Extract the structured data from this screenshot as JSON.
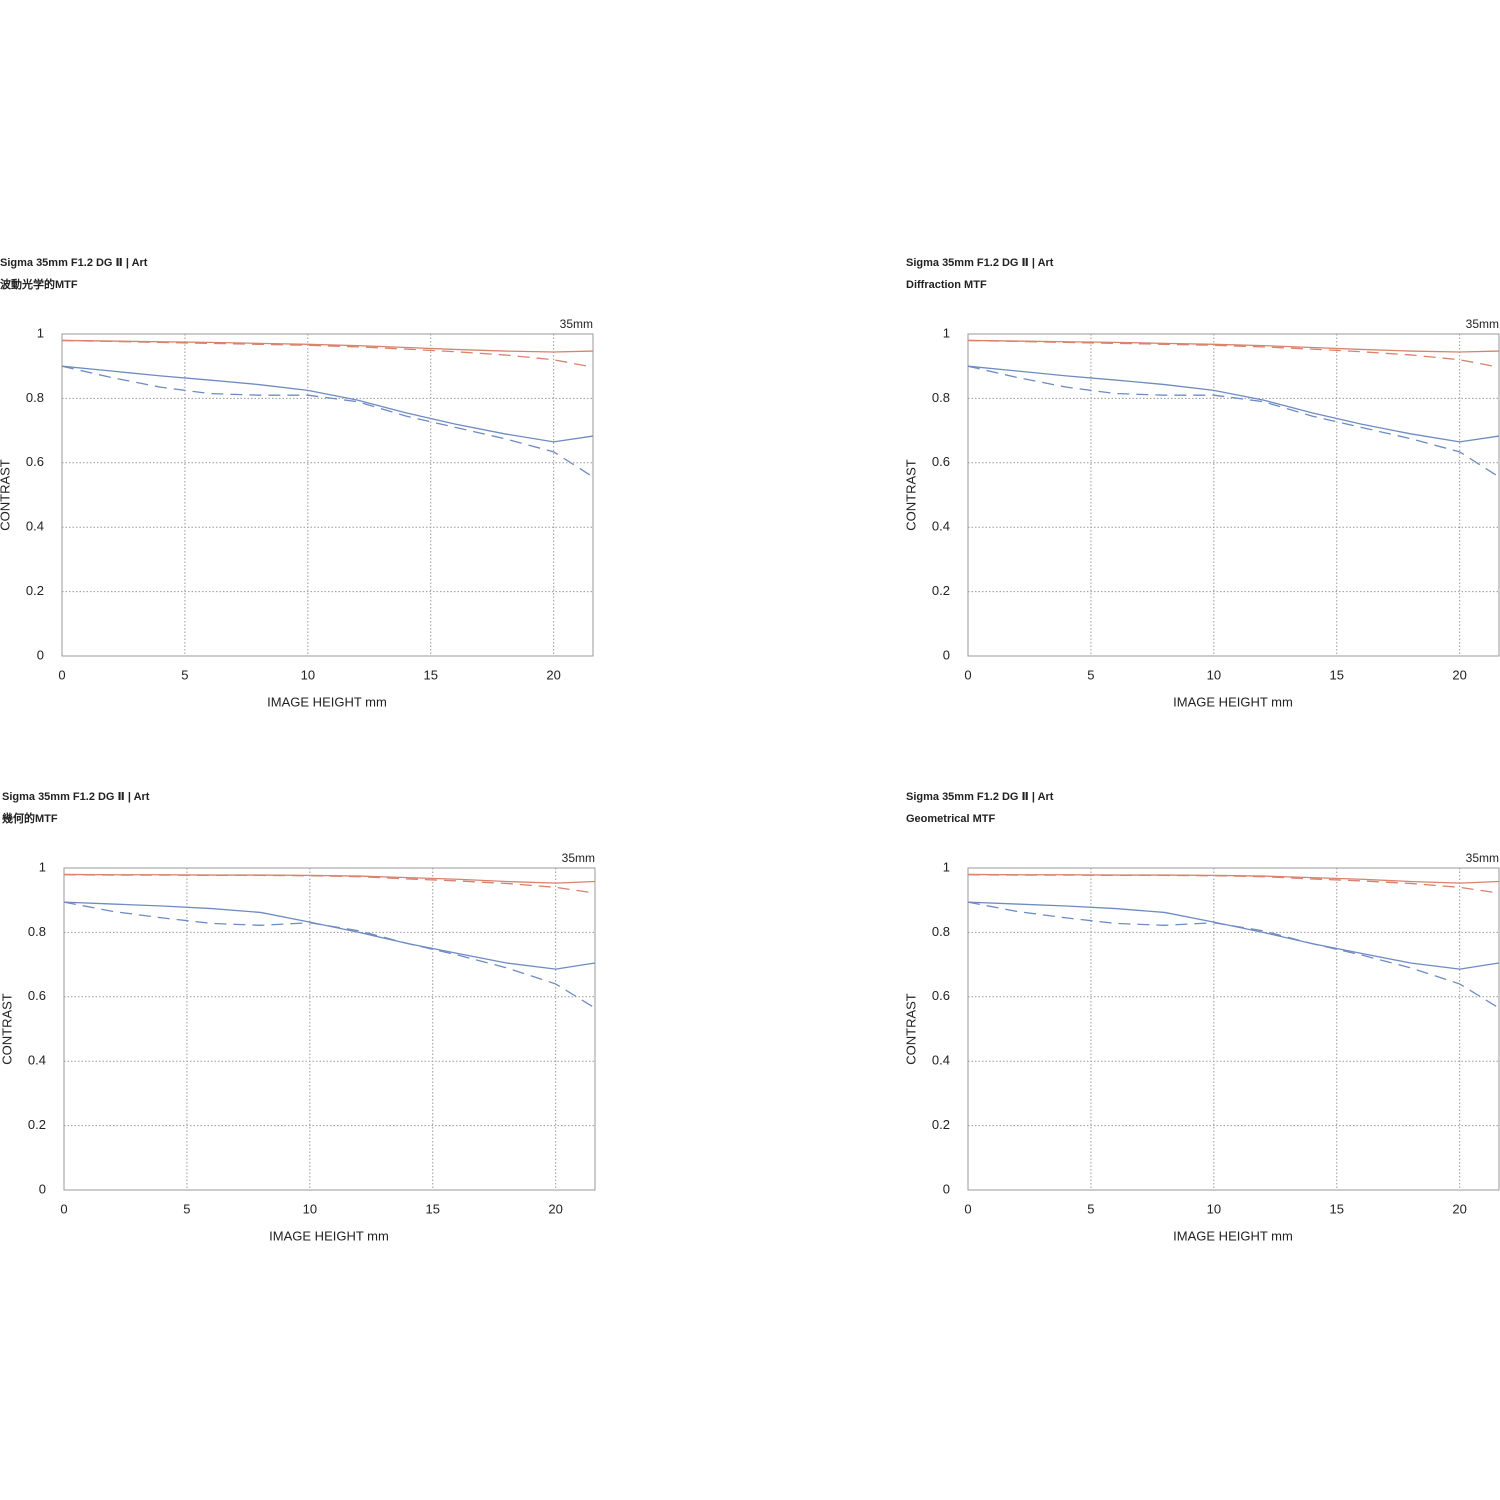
{
  "chart_data": [
    {
      "type": "line",
      "title": "Sigma 35mm F1.2 DG Ⅱ | Art",
      "subtitle": "波動光学的MTF",
      "annotation": "35mm",
      "xlabel": "IMAGE HEIGHT  mm",
      "ylabel": "CONTRAST",
      "x": [
        0,
        2,
        4,
        6,
        8,
        10,
        12,
        14,
        16,
        18,
        20,
        21.6
      ],
      "series": [
        {
          "color": "#d9826e",
          "dash": false,
          "values": [
            0.98,
            0.978,
            0.976,
            0.974,
            0.971,
            0.968,
            0.964,
            0.958,
            0.952,
            0.947,
            0.944,
            0.947
          ]
        },
        {
          "color": "#d9826e",
          "dash": true,
          "values": [
            0.98,
            0.977,
            0.974,
            0.971,
            0.968,
            0.965,
            0.96,
            0.953,
            0.945,
            0.935,
            0.92,
            0.897
          ]
        },
        {
          "color": "#6e8bc2",
          "dash": false,
          "values": [
            0.9,
            0.885,
            0.87,
            0.857,
            0.843,
            0.825,
            0.795,
            0.755,
            0.72,
            0.69,
            0.665,
            0.683
          ]
        },
        {
          "color": "#6e8bc2",
          "dash": true,
          "values": [
            0.9,
            0.865,
            0.835,
            0.815,
            0.81,
            0.81,
            0.79,
            0.745,
            0.71,
            0.675,
            0.634,
            0.556
          ]
        }
      ],
      "xlim": [
        0,
        21.6
      ],
      "ylim": [
        0,
        1
      ],
      "xticks": [
        0,
        5,
        10,
        15,
        20
      ],
      "yticks": [
        0,
        0.2,
        0.4,
        0.6,
        0.8,
        1
      ],
      "grid": true
    },
    {
      "type": "line",
      "title": "Sigma 35mm F1.2 DG Ⅱ | Art",
      "subtitle": "Diffraction MTF",
      "annotation": "35mm",
      "xlabel": "IMAGE HEIGHT  mm",
      "ylabel": "CONTRAST",
      "x": [
        0,
        2,
        4,
        6,
        8,
        10,
        12,
        14,
        16,
        18,
        20,
        21.6
      ],
      "series": [
        {
          "color": "#d9826e",
          "dash": false,
          "values": [
            0.98,
            0.978,
            0.976,
            0.974,
            0.971,
            0.968,
            0.964,
            0.958,
            0.952,
            0.947,
            0.944,
            0.947
          ]
        },
        {
          "color": "#d9826e",
          "dash": true,
          "values": [
            0.98,
            0.977,
            0.974,
            0.971,
            0.968,
            0.965,
            0.96,
            0.953,
            0.945,
            0.935,
            0.92,
            0.897
          ]
        },
        {
          "color": "#6e8bc2",
          "dash": false,
          "values": [
            0.9,
            0.885,
            0.87,
            0.857,
            0.843,
            0.825,
            0.795,
            0.755,
            0.72,
            0.69,
            0.665,
            0.683
          ]
        },
        {
          "color": "#6e8bc2",
          "dash": true,
          "values": [
            0.9,
            0.865,
            0.835,
            0.815,
            0.81,
            0.81,
            0.79,
            0.745,
            0.71,
            0.675,
            0.634,
            0.556
          ]
        }
      ],
      "xlim": [
        0,
        21.6
      ],
      "ylim": [
        0,
        1
      ],
      "xticks": [
        0,
        5,
        10,
        15,
        20
      ],
      "yticks": [
        0,
        0.2,
        0.4,
        0.6,
        0.8,
        1
      ],
      "grid": true
    },
    {
      "type": "line",
      "title": "Sigma 35mm F1.2 DG Ⅱ | Art",
      "subtitle": "幾何的MTF",
      "annotation": "35mm",
      "xlabel": "IMAGE HEIGHT  mm",
      "ylabel": "CONTRAST",
      "x": [
        0,
        2,
        4,
        6,
        8,
        10,
        12,
        14,
        16,
        18,
        20,
        21.6
      ],
      "series": [
        {
          "color": "#d9826e",
          "dash": false,
          "values": [
            0.98,
            0.979,
            0.979,
            0.978,
            0.978,
            0.977,
            0.975,
            0.97,
            0.965,
            0.958,
            0.953,
            0.958
          ]
        },
        {
          "color": "#d9826e",
          "dash": true,
          "values": [
            0.979,
            0.978,
            0.978,
            0.977,
            0.977,
            0.976,
            0.973,
            0.966,
            0.96,
            0.952,
            0.94,
            0.922
          ]
        },
        {
          "color": "#6e8bc2",
          "dash": false,
          "values": [
            0.894,
            0.888,
            0.882,
            0.874,
            0.862,
            0.832,
            0.8,
            0.765,
            0.735,
            0.705,
            0.686,
            0.705
          ]
        },
        {
          "color": "#6e8bc2",
          "dash": true,
          "values": [
            0.894,
            0.865,
            0.845,
            0.828,
            0.822,
            0.83,
            0.805,
            0.765,
            0.73,
            0.69,
            0.64,
            0.565
          ]
        }
      ],
      "xlim": [
        0,
        21.6
      ],
      "ylim": [
        0,
        1
      ],
      "xticks": [
        0,
        5,
        10,
        15,
        20
      ],
      "yticks": [
        0,
        0.2,
        0.4,
        0.6,
        0.8,
        1
      ],
      "grid": true
    },
    {
      "type": "line",
      "title": "Sigma 35mm F1.2 DG Ⅱ | Art",
      "subtitle": "Geometrical MTF",
      "annotation": "35mm",
      "xlabel": "IMAGE HEIGHT  mm",
      "ylabel": "CONTRAST",
      "x": [
        0,
        2,
        4,
        6,
        8,
        10,
        12,
        14,
        16,
        18,
        20,
        21.6
      ],
      "series": [
        {
          "color": "#d9826e",
          "dash": false,
          "values": [
            0.98,
            0.979,
            0.979,
            0.978,
            0.978,
            0.977,
            0.975,
            0.97,
            0.965,
            0.958,
            0.953,
            0.958
          ]
        },
        {
          "color": "#d9826e",
          "dash": true,
          "values": [
            0.979,
            0.978,
            0.978,
            0.977,
            0.977,
            0.976,
            0.973,
            0.966,
            0.96,
            0.952,
            0.94,
            0.922
          ]
        },
        {
          "color": "#6e8bc2",
          "dash": false,
          "values": [
            0.894,
            0.888,
            0.882,
            0.874,
            0.862,
            0.832,
            0.8,
            0.765,
            0.735,
            0.705,
            0.686,
            0.705
          ]
        },
        {
          "color": "#6e8bc2",
          "dash": true,
          "values": [
            0.894,
            0.865,
            0.845,
            0.828,
            0.822,
            0.83,
            0.805,
            0.765,
            0.73,
            0.69,
            0.64,
            0.565
          ]
        }
      ],
      "xlim": [
        0,
        21.6
      ],
      "ylim": [
        0,
        1
      ],
      "xticks": [
        0,
        5,
        10,
        15,
        20
      ],
      "yticks": [
        0,
        0.2,
        0.4,
        0.6,
        0.8,
        1
      ],
      "grid": true
    }
  ]
}
